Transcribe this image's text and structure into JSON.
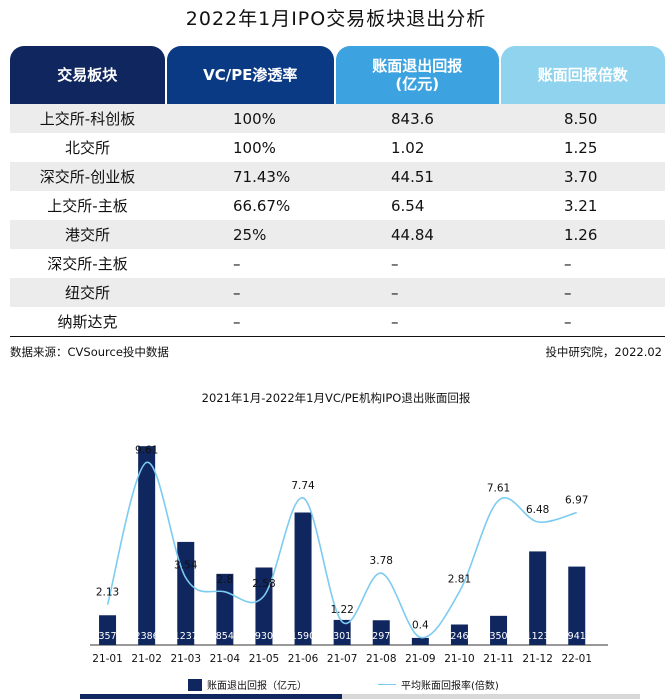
{
  "title": "2022年1月IPO交易板块退出分析",
  "table": {
    "headers": [
      "交易板块",
      "VC/PE渗透率",
      "账面退出回报\n(亿元)",
      "账面回报倍数"
    ],
    "rows": [
      [
        "上交所-科创板",
        "100%",
        "843.6",
        "8.50"
      ],
      [
        "北交所",
        "100%",
        "1.02",
        "1.25"
      ],
      [
        "深交所-创业板",
        "71.43%",
        "44.51",
        "3.70"
      ],
      [
        "上交所-主板",
        "66.67%",
        "6.54",
        "3.21"
      ],
      [
        "港交所",
        "25%",
        "44.84",
        "1.26"
      ],
      [
        "深交所-主板",
        "–",
        "–",
        "–"
      ],
      [
        "纽交所",
        "–",
        "–",
        "–"
      ],
      [
        "纳斯达克",
        "–",
        "–",
        "–"
      ]
    ]
  },
  "source": "数据来源：CVSource投中数据",
  "credit": "投中研究院，2022.02",
  "colors": {
    "bar": "#10265e",
    "line": "#7ccbf0"
  },
  "chart_data": {
    "type": "bar",
    "title": "2021年1月-2022年1月VC/PE机构IPO退出账面回报",
    "categories": [
      "21-01",
      "21-02",
      "21-03",
      "21-04",
      "21-05",
      "21-06",
      "21-07",
      "21-08",
      "21-09",
      "21-10",
      "21-11",
      "21-12",
      "22-01"
    ],
    "series": [
      {
        "name": "账面退出回报（亿元）",
        "type": "bar",
        "values": [
          357,
          2386,
          1237,
          854,
          930,
          1590,
          301,
          297,
          85,
          246,
          350,
          1123,
          941
        ]
      },
      {
        "name": "平均账面回报率(倍数)",
        "type": "line",
        "values": [
          2.13,
          9.61,
          3.54,
          2.8,
          2.58,
          7.74,
          1.22,
          3.78,
          0.4,
          2.81,
          7.61,
          6.48,
          6.97
        ],
        "labels": [
          "2.13",
          "9.61",
          "3.54",
          "2.8",
          "2.58",
          "7.74",
          "1.22",
          "3.78",
          "0.4",
          "2.81",
          "7.61",
          "6.48",
          "6.97"
        ]
      }
    ],
    "bar_labels": [
      "357",
      "2386",
      "1237",
      "854",
      "930",
      "1590",
      "301",
      "297",
      "",
      "246",
      "350",
      "1123",
      "941"
    ],
    "legend": [
      "账面退出回报（亿元）",
      "平均账面回报率(倍数)"
    ],
    "legend_position": "bottom",
    "grid": false
  }
}
